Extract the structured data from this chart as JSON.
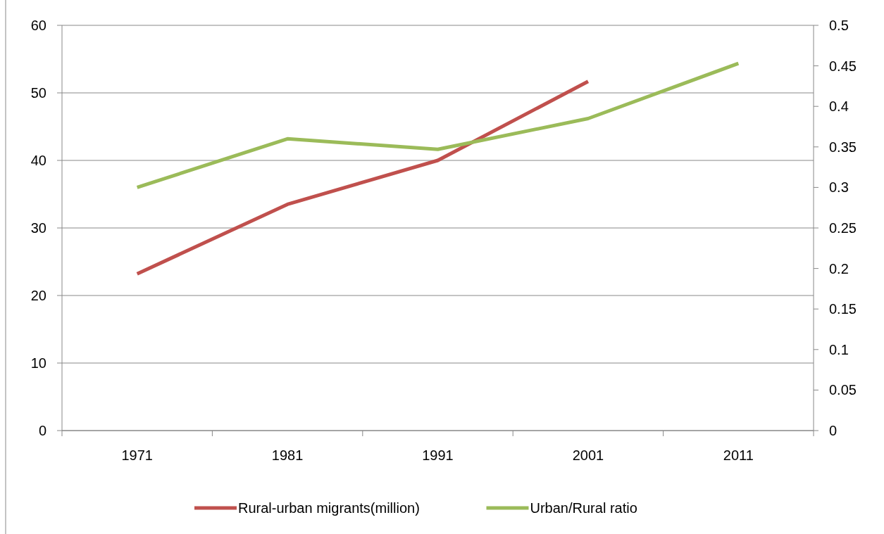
{
  "chart_data": {
    "type": "line",
    "categories": [
      "1971",
      "1981",
      "1991",
      "2001",
      "2011"
    ],
    "ylim": [
      0,
      60
    ],
    "yticks": [
      0,
      10,
      20,
      30,
      40,
      50,
      60
    ],
    "y2lim": [
      0,
      0.5
    ],
    "y2ticks": [
      0,
      0.05,
      0.1,
      0.15,
      0.2,
      0.25,
      0.3,
      0.35,
      0.4,
      0.45,
      0.5
    ],
    "series": [
      {
        "name": "Rural-urban migrants(million)",
        "color": "#c0504d",
        "values": [
          23.2,
          33.5,
          40,
          51.7,
          null
        ]
      },
      {
        "name": "Urban/Rural ratio",
        "color": "#9bbb59",
        "values": [
          0.3,
          0.36,
          0.347,
          0.385,
          0.453
        ],
        "axis": "y2"
      }
    ],
    "grid": "y",
    "legend": "bottom",
    "marker": "none",
    "line_style": "solid"
  }
}
